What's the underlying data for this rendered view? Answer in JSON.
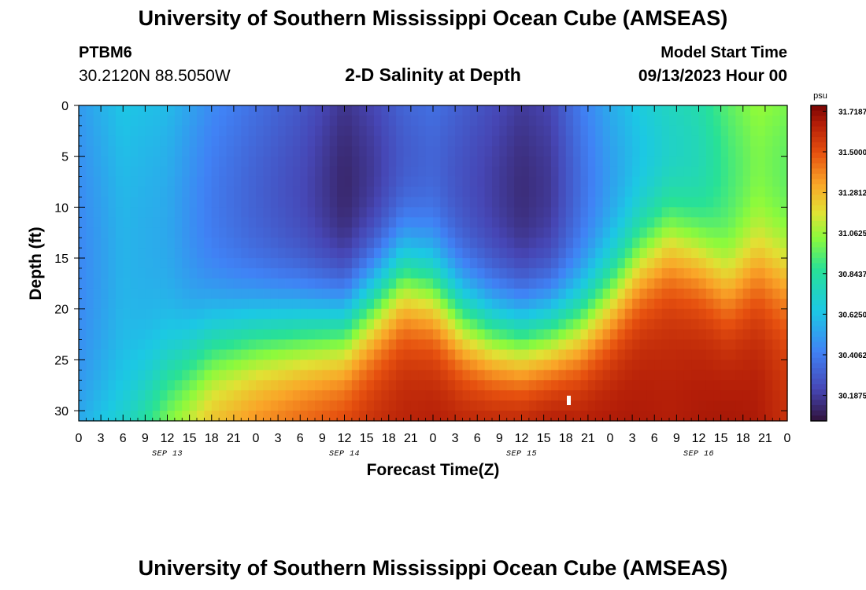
{
  "header": {
    "title": "University of Southern Mississippi Ocean Cube (AMSEAS)",
    "station_id": "PTBM6",
    "station_coords": "30.2120N  88.5050W",
    "plot_title": "2-D Salinity at Depth",
    "start_label": "Model Start Time",
    "start_value": "09/13/2023 Hour 00"
  },
  "footer": {
    "title": "University of Southern Mississippi Ocean Cube (AMSEAS)"
  },
  "chart_data": {
    "type": "heatmap",
    "title": "2-D Salinity at Depth",
    "xlabel": "Forecast Time(Z)",
    "ylabel": "Depth (ft)",
    "x_hours_range": [
      0,
      96
    ],
    "y_depth_range_ft": [
      0,
      31
    ],
    "x_tick_labels": [
      "0",
      "3",
      "6",
      "9",
      "12",
      "15",
      "18",
      "21",
      "0",
      "3",
      "6",
      "9",
      "12",
      "15",
      "18",
      "21",
      "0",
      "3",
      "6",
      "9",
      "12",
      "15",
      "18",
      "21",
      "0",
      "3",
      "6",
      "9",
      "12",
      "15",
      "18",
      "21",
      "0"
    ],
    "y_ticks": [
      0,
      5,
      10,
      15,
      20,
      25,
      30
    ],
    "y_tick_labels": [
      "0",
      "5",
      "10",
      "15",
      "20",
      "25",
      "30"
    ],
    "date_labels": [
      {
        "label": "SEP 13",
        "hour": 12
      },
      {
        "label": "SEP 14",
        "hour": 36
      },
      {
        "label": "SEP 15",
        "hour": 60
      },
      {
        "label": "SEP 16",
        "hour": 84
      }
    ],
    "colorbar": {
      "unit": "psu",
      "min": 30.05,
      "max": 31.75,
      "tick_values": [
        31.7187,
        31.5,
        31.2812,
        31.0625,
        30.8437,
        30.625,
        30.4062,
        30.1875
      ],
      "tick_labels": [
        "31.7187",
        "31.5000",
        "31.2812",
        "31.0625",
        "30.8437",
        "30.6250",
        "30.4062",
        "30.1875"
      ]
    },
    "halocline": {
      "hours": [
        0,
        6,
        12,
        18,
        24,
        30,
        36,
        40,
        44,
        48,
        52,
        56,
        60,
        64,
        68,
        72,
        76,
        80,
        84,
        88,
        92,
        96
      ],
      "depth_ft": [
        31,
        31,
        27,
        24,
        23,
        22.5,
        22,
        19.5,
        17,
        18,
        21,
        22.5,
        23,
        22.5,
        21.5,
        19,
        15.5,
        13.5,
        15,
        18,
        16,
        17
      ],
      "surface_psu": [
        30.5,
        30.64,
        30.6,
        30.45,
        30.36,
        30.28,
        30.16,
        30.22,
        30.32,
        30.36,
        30.3,
        30.24,
        30.18,
        30.22,
        30.4,
        30.55,
        30.66,
        30.74,
        30.8,
        30.95,
        31.05,
        31.0
      ],
      "bottom_psu": [
        30.6,
        30.8,
        31.1,
        31.3,
        31.4,
        31.48,
        31.55,
        31.58,
        31.6,
        31.62,
        31.63,
        31.66,
        31.68,
        31.7,
        31.66,
        31.64,
        31.62,
        31.6,
        31.62,
        31.64,
        31.62,
        31.55
      ]
    }
  }
}
